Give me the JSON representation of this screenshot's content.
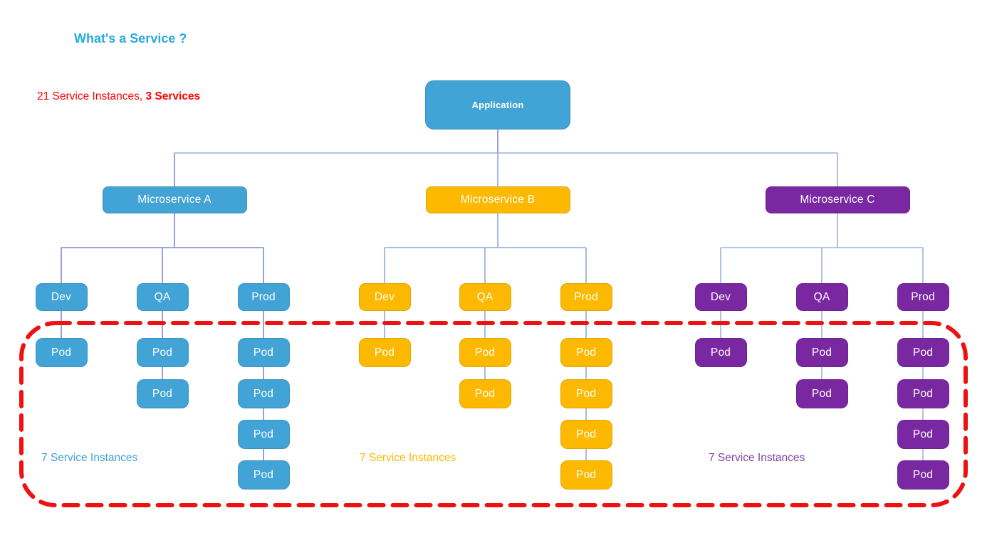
{
  "title": "What's a Service ?",
  "title_color": "#29A9E1",
  "summary": {
    "normal": "21 Service Instances, ",
    "bold": "3 Services",
    "color": "#FF0000"
  },
  "root": {
    "label": "Application",
    "color": "#41A3D6",
    "text_color": "#FFFFFF"
  },
  "services": [
    {
      "name": "Microservice A",
      "color": "#41A3D6",
      "label_color": "#41A3D6",
      "connector_color": "#7B8CCB",
      "instances_label": "7 Service Instances",
      "environments": [
        {
          "name": "Dev",
          "pods": [
            "Pod"
          ]
        },
        {
          "name": "QA",
          "pods": [
            "Pod",
            "Pod"
          ]
        },
        {
          "name": "Prod",
          "pods": [
            "Pod",
            "Pod",
            "Pod",
            "Pod"
          ]
        }
      ]
    },
    {
      "name": "Microservice B",
      "color": "#FCB900",
      "label_color": "#FCB900",
      "connector_color": "#8FAADC",
      "instances_label": "7 Service Instances",
      "environments": [
        {
          "name": "Dev",
          "pods": [
            "Pod"
          ]
        },
        {
          "name": "QA",
          "pods": [
            "Pod",
            "Pod"
          ]
        },
        {
          "name": "Prod",
          "pods": [
            "Pod",
            "Pod",
            "Pod",
            "Pod"
          ]
        }
      ]
    },
    {
      "name": "Microservice C",
      "color": "#7928A1",
      "label_color": "#8144A8",
      "connector_color": "#9BB3DD",
      "instances_label": "7 Service Instances",
      "environments": [
        {
          "name": "Dev",
          "pods": [
            "Pod"
          ]
        },
        {
          "name": "QA",
          "pods": [
            "Pod",
            "Pod"
          ]
        },
        {
          "name": "Prod",
          "pods": [
            "Pod",
            "Pod",
            "Pod",
            "Pod"
          ]
        }
      ]
    }
  ],
  "tree_lines": {
    "trunk_color": "#7B8CCB",
    "crossbar_color": "#9AAEDB"
  },
  "highlight": {
    "color": "#EE1111",
    "description": "dashed rounded rectangle enclosing all pods"
  }
}
